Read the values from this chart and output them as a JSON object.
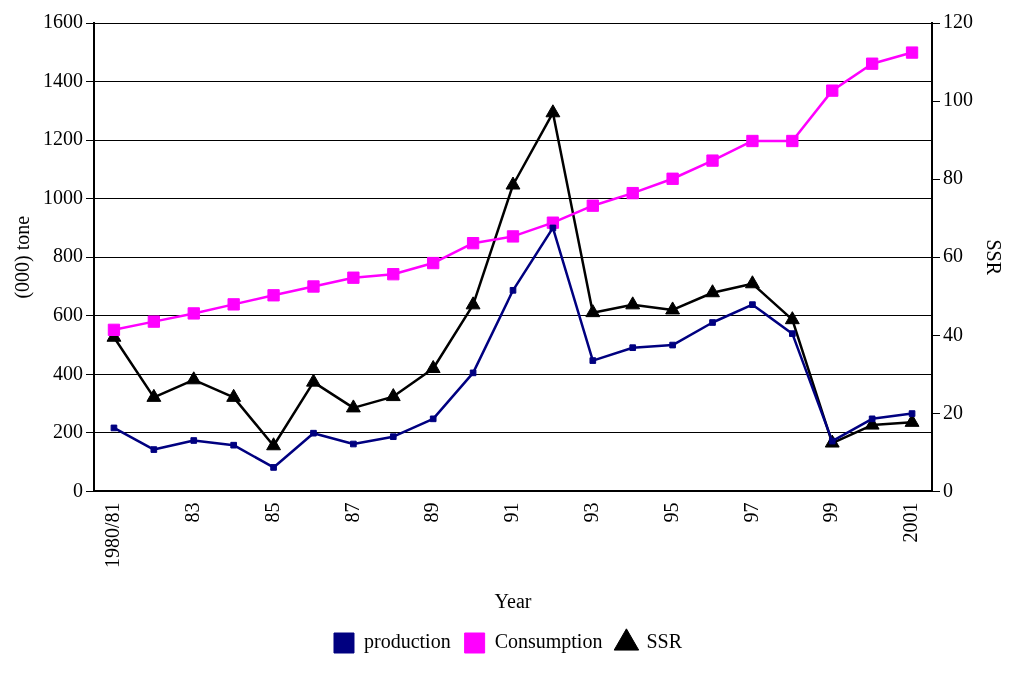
{
  "chart_data": {
    "type": "line",
    "xlabel": "Year",
    "ylabel": "(000) tone",
    "y2label": "SSR",
    "categories": [
      "1980/81",
      null,
      "83",
      null,
      "85",
      null,
      "87",
      null,
      "89",
      null,
      "91",
      null,
      "93",
      null,
      "95",
      null,
      "97",
      null,
      "99",
      null,
      "2001"
    ],
    "series": [
      {
        "name": "production",
        "color": "#000080",
        "marker": "square",
        "values": [
          217,
          143,
          174,
          158,
          82,
          199,
          162,
          187,
          248,
          405,
          687,
          900,
          447,
          491,
          500,
          577,
          638,
          539,
          172,
          248,
          266
        ]
      },
      {
        "name": "Consumption",
        "color": "#ff00ff",
        "marker": "square",
        "values": [
          552,
          580,
          608,
          639,
          670,
          700,
          730,
          742,
          780,
          848,
          871,
          918,
          976,
          1019,
          1068,
          1130,
          1197,
          1197,
          1369,
          1461,
          1499
        ]
      },
      {
        "name": "SSR",
        "color": "#000000",
        "marker": "triangle",
        "axis": "y2",
        "values": [
          39.5,
          24.1,
          28.6,
          24.1,
          11.7,
          28,
          21.4,
          24.3,
          31.5,
          47.8,
          78.5,
          97,
          45.8,
          47.8,
          46.5,
          50.9,
          53.2,
          44,
          12.4,
          17,
          17.7
        ]
      }
    ],
    "ylim": [
      0,
      1600
    ],
    "yticks": [
      0,
      200,
      400,
      600,
      800,
      1000,
      1200,
      1400,
      1600
    ],
    "y2lim": [
      0,
      120
    ],
    "y2ticks": [
      0,
      20,
      40,
      60,
      80,
      100,
      120
    ],
    "grid": "y",
    "legend": "bottom",
    "line_style": "solid"
  }
}
